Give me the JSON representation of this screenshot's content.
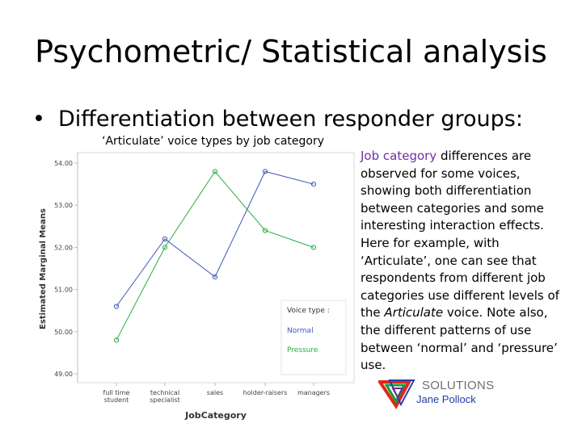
{
  "slide": {
    "title": "Psychometric/ Statistical analysis",
    "bullet_marker": "•",
    "bullet": "Differentiation between responder groups:"
  },
  "chart_data": {
    "type": "line",
    "title": "‘Articulate’ voice types by job category",
    "xlabel": "JobCategory",
    "ylabel": "Estimated Marginal Means",
    "categories": [
      "full time student",
      "technical specialist",
      "sales",
      "holder-raisers",
      "managers"
    ],
    "category_lines": [
      [
        "full time",
        "student"
      ],
      [
        "technical",
        "specialist"
      ],
      [
        "sales"
      ],
      [
        "holder-raisers"
      ],
      [
        "managers"
      ]
    ],
    "y_ticks": [
      "49.00",
      "50.00",
      "51.00",
      "52.00",
      "53.00",
      "54.00"
    ],
    "ylim": [
      49.0,
      54.0
    ],
    "legend_title": "Voice type :",
    "legend_position": "inside-bottom-right",
    "series": [
      {
        "name": "Normal",
        "color": "#3f57b8",
        "values": [
          50.6,
          52.2,
          51.3,
          53.8,
          53.5
        ]
      },
      {
        "name": "Pressure",
        "color": "#22b040",
        "values": [
          49.8,
          52.0,
          53.8,
          52.4,
          52.0
        ]
      }
    ],
    "grid": false
  },
  "body_text": {
    "parts": [
      {
        "text": "Job category",
        "kw": true
      },
      {
        "text": " differences are observed for some voices, showing both differentiation between categories and some interesting interaction effects. Here for example, with ‘Articulate’, one can see that respondents from different job categories use different levels of the ",
        "kw": false
      },
      {
        "text": "Articulate",
        "italic": true
      },
      {
        "text": " voice. Note also, the different patterns of use between ‘normal’ and ‘pressure’ use.",
        "kw": false
      }
    ]
  },
  "logo": {
    "name": "SOLUTIONS",
    "author": "Jane Pollock",
    "colors": {
      "red": "#e0261c",
      "green": "#1e9a3a",
      "blue": "#2a3fb0",
      "purple": "#6b2c91"
    }
  }
}
